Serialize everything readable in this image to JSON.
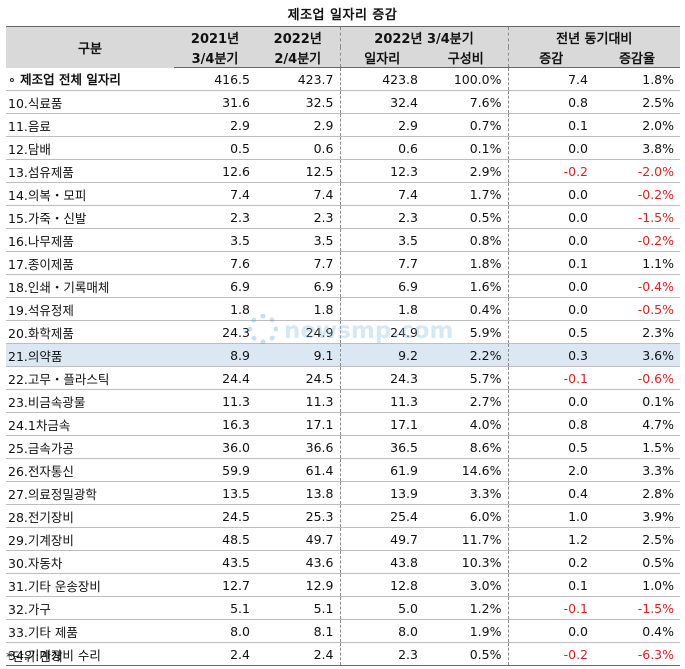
{
  "title": "제조업 일자리 증감",
  "header": {
    "category": "구분",
    "col2021_line1": "2021년",
    "col2021_line2": "3/4분기",
    "col2022q2_line1": "2022년",
    "col2022q2_line2": "2/4분기",
    "col2022q3_group": "2022년 3/4분기",
    "col_jobs": "일자리",
    "col_share": "구성비",
    "yoy_group": "전년 동기대비",
    "col_change": "증감",
    "col_rate": "증감율"
  },
  "rows": [
    {
      "name": "∘ 제조업 전체 일자리",
      "v2021q3": "416.5",
      "v2022q2": "423.7",
      "jobs": "423.8",
      "share": "100.0%",
      "change": "7.4",
      "rate": "1.8%",
      "total": true
    },
    {
      "name": "10.식료품",
      "v2021q3": "31.6",
      "v2022q2": "32.5",
      "jobs": "32.4",
      "share": "7.6%",
      "change": "0.8",
      "rate": "2.5%"
    },
    {
      "name": "11.음료",
      "v2021q3": "2.9",
      "v2022q2": "2.9",
      "jobs": "2.9",
      "share": "0.7%",
      "change": "0.1",
      "rate": "2.0%"
    },
    {
      "name": "12.담배",
      "v2021q3": "0.5",
      "v2022q2": "0.6",
      "jobs": "0.6",
      "share": "0.1%",
      "change": "0.0",
      "rate": "3.8%"
    },
    {
      "name": "13.섬유제품",
      "v2021q3": "12.6",
      "v2022q2": "12.5",
      "jobs": "12.3",
      "share": "2.9%",
      "change": "-0.2",
      "rate": "-2.0%"
    },
    {
      "name": "14.의복・모피",
      "v2021q3": "7.4",
      "v2022q2": "7.4",
      "jobs": "7.4",
      "share": "1.7%",
      "change": "0.0",
      "rate": "-0.2%"
    },
    {
      "name": "15.가죽・신발",
      "v2021q3": "2.3",
      "v2022q2": "2.3",
      "jobs": "2.3",
      "share": "0.5%",
      "change": "0.0",
      "rate": "-1.5%"
    },
    {
      "name": "16.나무제품",
      "v2021q3": "3.5",
      "v2022q2": "3.5",
      "jobs": "3.5",
      "share": "0.8%",
      "change": "0.0",
      "rate": "-0.2%"
    },
    {
      "name": "17.종이제품",
      "v2021q3": "7.6",
      "v2022q2": "7.7",
      "jobs": "7.7",
      "share": "1.8%",
      "change": "0.1",
      "rate": "1.1%"
    },
    {
      "name": "18.인쇄・기록매체",
      "v2021q3": "6.9",
      "v2022q2": "6.9",
      "jobs": "6.9",
      "share": "1.6%",
      "change": "0.0",
      "rate": "-0.4%"
    },
    {
      "name": "19.석유정제",
      "v2021q3": "1.8",
      "v2022q2": "1.8",
      "jobs": "1.8",
      "share": "0.4%",
      "change": "0.0",
      "rate": "-0.5%"
    },
    {
      "name": "20.화학제품",
      "v2021q3": "24.3",
      "v2022q2": "24.9",
      "jobs": "24.9",
      "share": "5.9%",
      "change": "0.5",
      "rate": "2.3%"
    },
    {
      "name": "21.의약품",
      "v2021q3": "8.9",
      "v2022q2": "9.1",
      "jobs": "9.2",
      "share": "2.2%",
      "change": "0.3",
      "rate": "3.6%",
      "highlight": true
    },
    {
      "name": "22.고무・플라스틱",
      "v2021q3": "24.4",
      "v2022q2": "24.5",
      "jobs": "24.3",
      "share": "5.7%",
      "change": "-0.1",
      "rate": "-0.6%"
    },
    {
      "name": "23.비금속광물",
      "v2021q3": "11.3",
      "v2022q2": "11.3",
      "jobs": "11.3",
      "share": "2.7%",
      "change": "0.0",
      "rate": "0.1%"
    },
    {
      "name": "24.1차금속",
      "v2021q3": "16.3",
      "v2022q2": "17.1",
      "jobs": "17.1",
      "share": "4.0%",
      "change": "0.8",
      "rate": "4.7%"
    },
    {
      "name": "25.금속가공",
      "v2021q3": "36.0",
      "v2022q2": "36.6",
      "jobs": "36.5",
      "share": "8.6%",
      "change": "0.5",
      "rate": "1.5%"
    },
    {
      "name": "26.전자통신",
      "v2021q3": "59.9",
      "v2022q2": "61.4",
      "jobs": "61.9",
      "share": "14.6%",
      "change": "2.0",
      "rate": "3.3%"
    },
    {
      "name": "27.의료정밀광학",
      "v2021q3": "13.5",
      "v2022q2": "13.8",
      "jobs": "13.9",
      "share": "3.3%",
      "change": "0.4",
      "rate": "2.8%"
    },
    {
      "name": "28.전기장비",
      "v2021q3": "24.5",
      "v2022q2": "25.3",
      "jobs": "25.4",
      "share": "6.0%",
      "change": "1.0",
      "rate": "3.9%"
    },
    {
      "name": "29.기계장비",
      "v2021q3": "48.5",
      "v2022q2": "49.7",
      "jobs": "49.7",
      "share": "11.7%",
      "change": "1.2",
      "rate": "2.5%"
    },
    {
      "name": "30.자동차",
      "v2021q3": "43.5",
      "v2022q2": "43.6",
      "jobs": "43.8",
      "share": "10.3%",
      "change": "0.2",
      "rate": "0.5%"
    },
    {
      "name": "31.기타 운송장비",
      "v2021q3": "12.7",
      "v2022q2": "12.9",
      "jobs": "12.8",
      "share": "3.0%",
      "change": "0.1",
      "rate": "1.0%"
    },
    {
      "name": "32.가구",
      "v2021q3": "5.1",
      "v2022q2": "5.1",
      "jobs": "5.0",
      "share": "1.2%",
      "change": "-0.1",
      "rate": "-1.5%"
    },
    {
      "name": "33.기타 제품",
      "v2021q3": "8.0",
      "v2022q2": "8.1",
      "jobs": "8.0",
      "share": "1.9%",
      "change": "0.0",
      "rate": "0.4%"
    },
    {
      "name": "34.기계장비 수리",
      "v2021q3": "2.4",
      "v2022q2": "2.4",
      "jobs": "2.3",
      "share": "0.5%",
      "change": "-0.2",
      "rate": "-6.3%"
    }
  ],
  "note": "*단위:만개",
  "watermark": "newsmp.com",
  "colors": {
    "negative": "#e02020",
    "header_bg": "#d9d9d9",
    "highlight_bg": "#dbe8f4"
  }
}
